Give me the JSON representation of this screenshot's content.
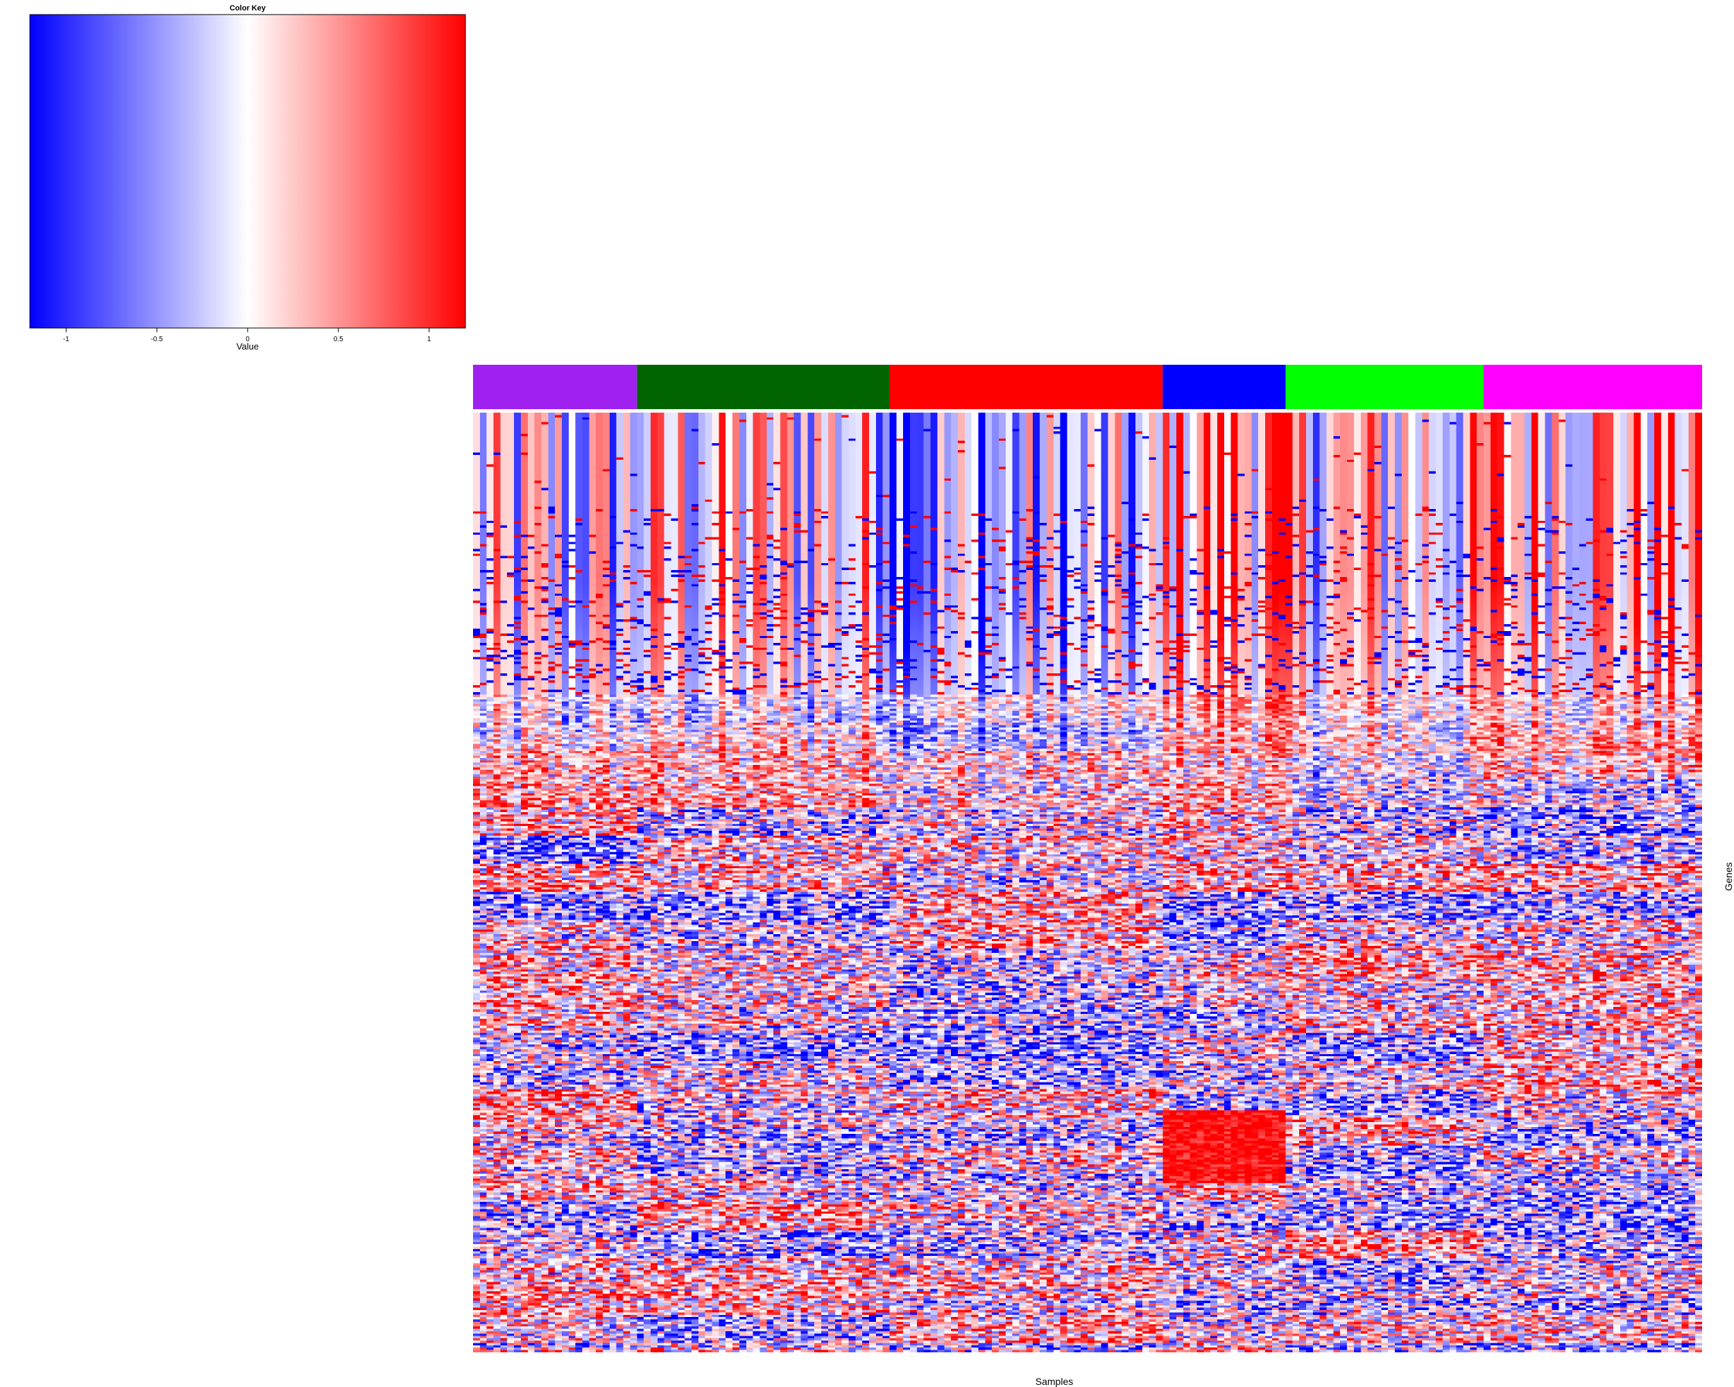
{
  "chart_data": {
    "type": "heatmap",
    "xlabel": "Samples",
    "ylabel": "Genes",
    "color_key": {
      "title": "Color Key",
      "label": "Value",
      "range": [
        -1.2,
        1.2
      ],
      "ticks": [
        -1,
        -0.5,
        0,
        0.5,
        1
      ],
      "tick_labels": [
        "-1",
        "-0.5",
        "0",
        "0.5",
        "1"
      ],
      "low_color": "#0000ff",
      "mid_color": "#ffffff",
      "high_color": "#ff0000"
    },
    "column_groups": [
      {
        "color": "#a020f0",
        "columns": 24
      },
      {
        "color": "#006400",
        "columns": 37
      },
      {
        "color": "#ff0000",
        "columns": 40
      },
      {
        "color": "#0000ff",
        "columns": 18
      },
      {
        "color": "#00ff00",
        "columns": 29
      },
      {
        "color": "#ff00ff",
        "columns": 32
      }
    ],
    "n_rows": 400,
    "n_columns": 180
  }
}
